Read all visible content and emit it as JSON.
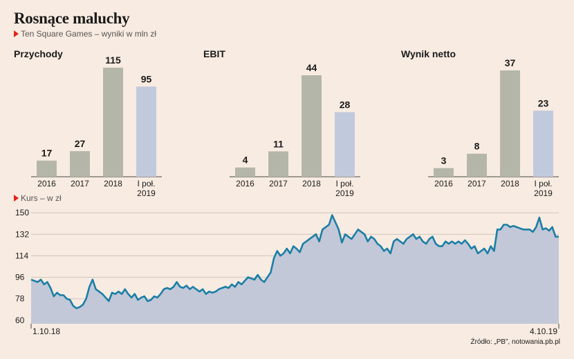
{
  "title": "Rosnące maluchy",
  "subtitle": "Ten Square Games – wyniki w mln zł",
  "chart_data": [
    {
      "type": "bar",
      "title": "Przychody",
      "categories": [
        "2016",
        "2017",
        "2018",
        "I poł. 2019"
      ],
      "values": [
        17,
        27,
        115,
        95
      ],
      "highlight": [
        false,
        false,
        false,
        true
      ]
    },
    {
      "type": "bar",
      "title": "EBIT",
      "categories": [
        "2016",
        "2017",
        "2018",
        "I poł. 2019"
      ],
      "values": [
        4,
        11,
        44,
        28
      ],
      "highlight": [
        false,
        false,
        false,
        true
      ]
    },
    {
      "type": "bar",
      "title": "Wynik netto",
      "categories": [
        "2016",
        "2017",
        "2018",
        "I poł. 2019"
      ],
      "values": [
        3,
        8,
        37,
        23
      ],
      "highlight": [
        false,
        false,
        false,
        true
      ]
    },
    {
      "type": "area",
      "title": "Kurs – w zł",
      "x_start": "1.10.18",
      "x_end": "4.10.19",
      "yticks": [
        60,
        78,
        96,
        114,
        132,
        150
      ],
      "ylim": [
        57,
        153
      ],
      "grid": true,
      "values": [
        94,
        93,
        92,
        94,
        90,
        92,
        87,
        80,
        83,
        81,
        81,
        78,
        77,
        72,
        70,
        71,
        73,
        78,
        88,
        94,
        86,
        84,
        82,
        79,
        76,
        83,
        82,
        84,
        82,
        86,
        82,
        79,
        82,
        77,
        79,
        80,
        76,
        77,
        80,
        79,
        82,
        86,
        87,
        86,
        88,
        92,
        88,
        87,
        89,
        86,
        88,
        86,
        84,
        86,
        82,
        84,
        83,
        84,
        86,
        87,
        88,
        87,
        90,
        88,
        92,
        90,
        93,
        96,
        95,
        94,
        98,
        94,
        92,
        96,
        100,
        112,
        118,
        114,
        116,
        120,
        116,
        122,
        120,
        117,
        124,
        126,
        128,
        130,
        132,
        126,
        136,
        138,
        140,
        148,
        142,
        136,
        125,
        132,
        130,
        128,
        132,
        136,
        134,
        132,
        126,
        130,
        128,
        124,
        122,
        118,
        120,
        116,
        126,
        128,
        126,
        124,
        128,
        130,
        132,
        128,
        130,
        126,
        124,
        128,
        130,
        124,
        122,
        122,
        126,
        124,
        126,
        124,
        126,
        124,
        127,
        124,
        120,
        122,
        116,
        118,
        120,
        116,
        122,
        118,
        136,
        136,
        140,
        140,
        138,
        139,
        138,
        137,
        136,
        136,
        136,
        134,
        138,
        146,
        136,
        137,
        135,
        138,
        130,
        130
      ]
    }
  ],
  "source": "Źródło: „PB”, notowania.pb.pl",
  "colors": {
    "bar": "#b5b6aa",
    "bar_highlight": "#c1c9dc",
    "area_fill": "#c2c8d7",
    "line": "#1b7ea5",
    "marker": "#e2231a"
  }
}
